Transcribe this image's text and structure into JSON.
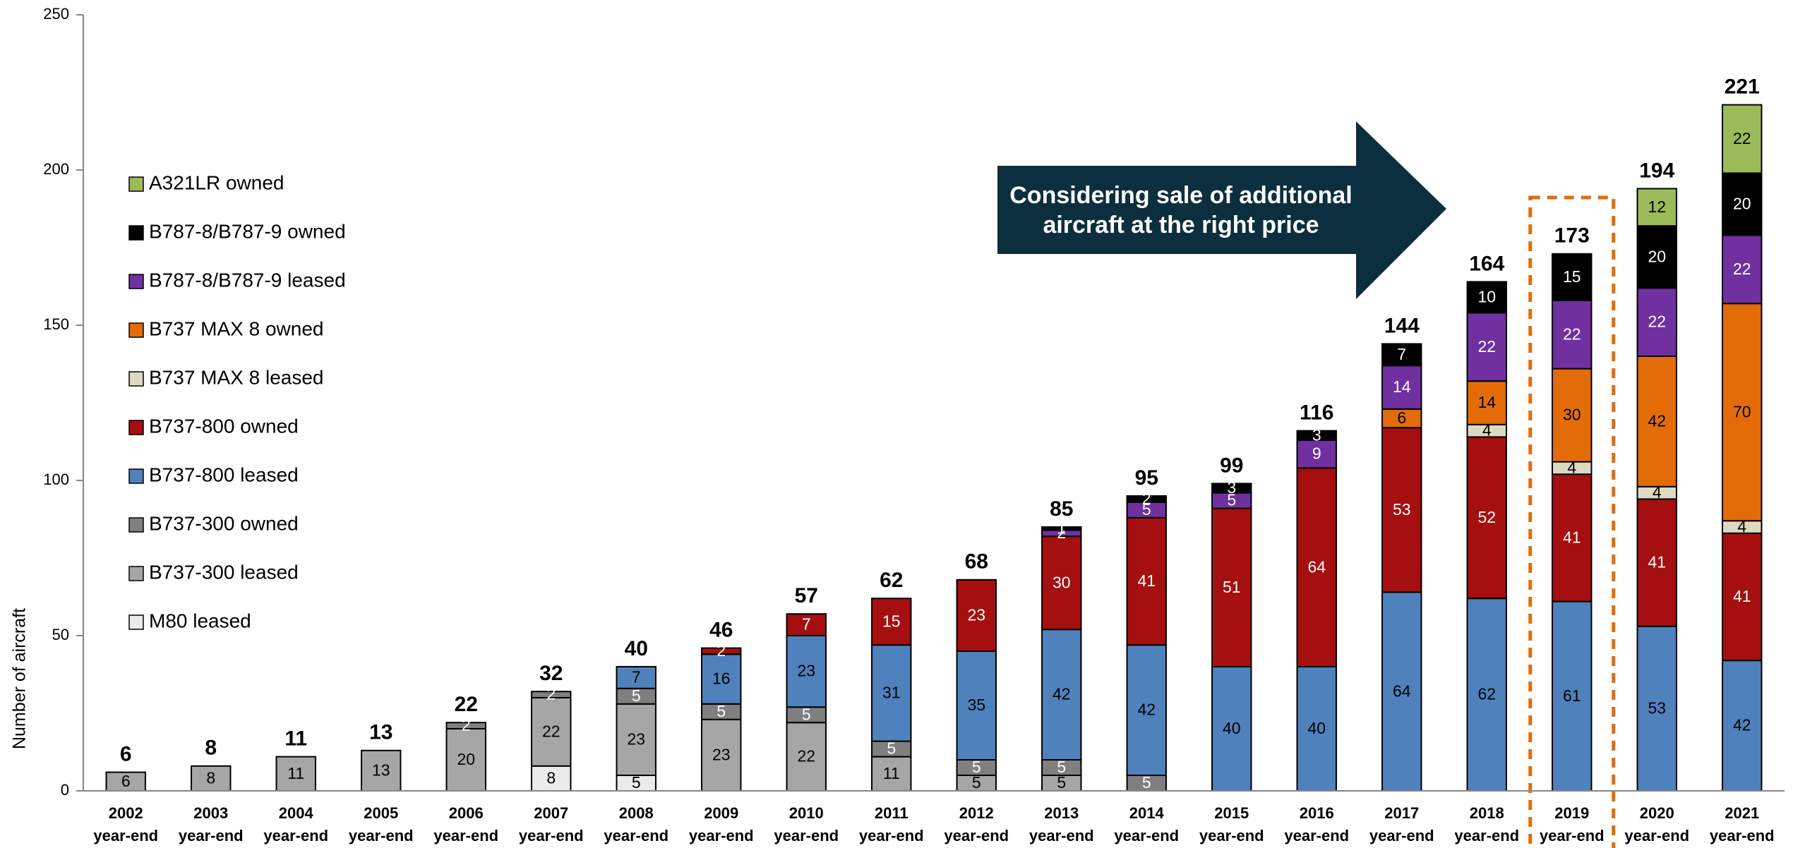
{
  "chart_data": {
    "type": "stacked-bar",
    "y_label": "Number of aircraft",
    "annotation": "Considering sale of additional aircraft at the right price",
    "categories": [
      "2002",
      "2003",
      "2004",
      "2005",
      "2006",
      "2007",
      "2008",
      "2009",
      "2010",
      "2011",
      "2012",
      "2013",
      "2014",
      "2015",
      "2016",
      "2017",
      "2018",
      "2019",
      "2020",
      "2021"
    ],
    "category_suffix": "year-end",
    "totals": [
      6,
      8,
      11,
      13,
      22,
      32,
      40,
      46,
      57,
      62,
      68,
      85,
      95,
      99,
      116,
      144,
      164,
      173,
      194,
      221
    ],
    "ylim": [
      0,
      250
    ],
    "yticks": [
      0,
      50,
      100,
      150,
      200,
      250
    ],
    "highlight_category": 17,
    "highlight_color": "#e36c09",
    "legend": "left",
    "series": [
      {
        "name": "M80 leased",
        "color": "#ebebeb",
        "label_color": "#000000",
        "values": [
          null,
          null,
          null,
          null,
          null,
          8,
          5,
          null,
          null,
          null,
          null,
          null,
          null,
          null,
          null,
          null,
          null,
          null,
          null,
          null
        ]
      },
      {
        "name": "B737-300 leased",
        "color": "#a6a6a6",
        "label_color": "#000000",
        "values": [
          6,
          8,
          11,
          13,
          20,
          22,
          23,
          23,
          22,
          11,
          5,
          5,
          null,
          null,
          null,
          null,
          null,
          null,
          null,
          null
        ]
      },
      {
        "name": "B737-300 owned",
        "color": "#7f7f7f",
        "label_color": "#ffffff",
        "values": [
          null,
          null,
          null,
          null,
          2,
          2,
          5,
          5,
          5,
          5,
          5,
          5,
          5,
          null,
          null,
          null,
          null,
          null,
          null,
          null
        ]
      },
      {
        "name": "B737-800 leased",
        "color": "#4f81bd",
        "label_color": "#000000",
        "values": [
          null,
          null,
          null,
          null,
          null,
          null,
          7,
          16,
          23,
          31,
          35,
          42,
          42,
          40,
          40,
          64,
          62,
          61,
          53,
          42
        ]
      },
      {
        "name": "B737-800 owned",
        "color": "#a50f0f",
        "label_color": "#ffffff",
        "values": [
          null,
          null,
          null,
          null,
          null,
          null,
          null,
          2,
          7,
          15,
          23,
          30,
          41,
          51,
          64,
          53,
          52,
          41,
          41,
          41
        ]
      },
      {
        "name": "B737 MAX 8 leased",
        "color": "#ddd9c3",
        "label_color": "#000000",
        "values": [
          null,
          null,
          null,
          null,
          null,
          null,
          null,
          null,
          null,
          null,
          null,
          null,
          null,
          null,
          null,
          null,
          4,
          4,
          4,
          4
        ]
      },
      {
        "name": "B737 MAX 8 owned",
        "color": "#e36c09",
        "label_color": "#000000",
        "values": [
          null,
          null,
          null,
          null,
          null,
          null,
          null,
          null,
          null,
          null,
          null,
          null,
          null,
          null,
          null,
          6,
          14,
          30,
          42,
          70
        ]
      },
      {
        "name": "B787-8/B787-9 leased",
        "color": "#7030a0",
        "label_color": "#ffffff",
        "values": [
          null,
          null,
          null,
          null,
          null,
          null,
          null,
          null,
          null,
          null,
          null,
          2,
          5,
          5,
          9,
          14,
          22,
          22,
          22,
          22
        ]
      },
      {
        "name": "B787-8/B787-9 owned",
        "color": "#000000",
        "label_color": "#ffffff",
        "values": [
          null,
          null,
          null,
          null,
          null,
          null,
          null,
          null,
          null,
          null,
          null,
          1,
          2,
          3,
          3,
          7,
          10,
          15,
          20,
          20
        ]
      },
      {
        "name": "A321LR owned",
        "color": "#9bbb59",
        "label_color": "#000000",
        "values": [
          null,
          null,
          null,
          null,
          null,
          null,
          null,
          null,
          null,
          null,
          null,
          null,
          null,
          null,
          null,
          null,
          null,
          null,
          12,
          22
        ]
      }
    ]
  }
}
